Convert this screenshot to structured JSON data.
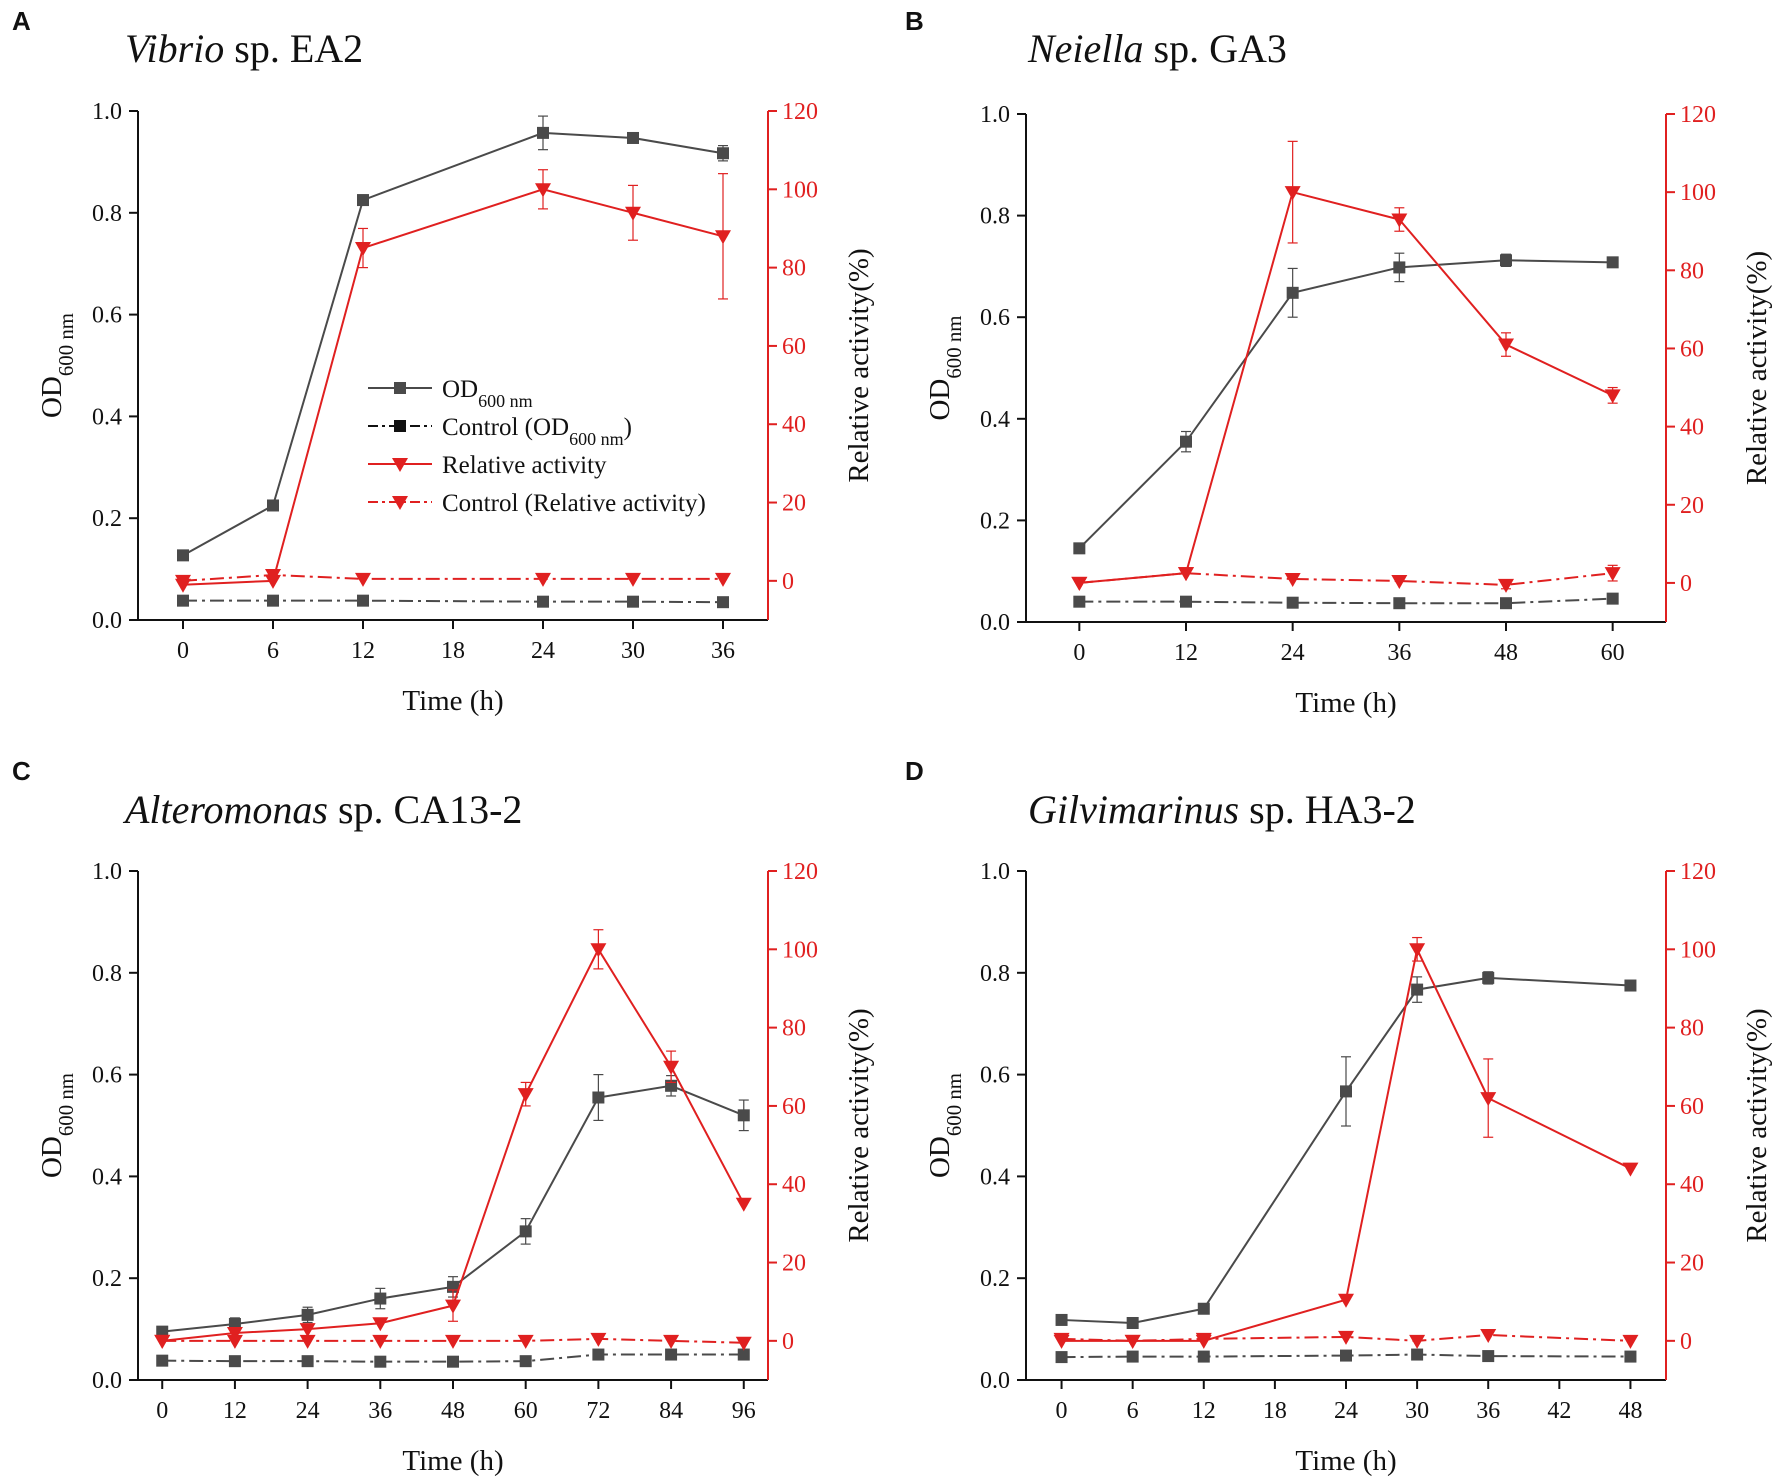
{
  "colors": {
    "od": "#4a4a4a",
    "activity": "#e02020",
    "axis_left": "#111111",
    "axis_right": "#e02020"
  },
  "legend": {
    "od": "OD600 nm",
    "control_od": "Control (OD600 nm)",
    "activity": "Relative activity",
    "control_activity": "Control (Relative activity)"
  },
  "chart_data": [
    {
      "panel": "A",
      "type": "line",
      "title": "Vibrio sp. EA2",
      "title_italic": "Vibrio",
      "title_rest": " sp. EA2",
      "xlabel": "Time (h)",
      "ylabel_left": "OD600 nm",
      "ylabel_right": "Relative activity(%)",
      "xlim": [
        -3,
        39
      ],
      "xticks": [
        0,
        6,
        12,
        18,
        24,
        30,
        36
      ],
      "ylim_left": [
        0,
        1.0
      ],
      "yticks_left": [
        "0.0",
        "0.2",
        "0.4",
        "0.6",
        "0.8",
        "1.0"
      ],
      "ylim_right": [
        -10,
        120
      ],
      "yticks_right": [
        0,
        20,
        40,
        60,
        80,
        100,
        120
      ],
      "has_legend": true,
      "series": [
        {
          "name": "OD600 nm",
          "axis": "left",
          "style": "solid",
          "marker": "square",
          "x": [
            0,
            6,
            12,
            24,
            30,
            36
          ],
          "values": [
            0.127,
            0.225,
            0.825,
            0.957,
            0.947,
            0.917
          ],
          "err": [
            0,
            0,
            0.01,
            0.033,
            0,
            0.015
          ]
        },
        {
          "name": "Control (OD600 nm)",
          "axis": "left",
          "style": "dashdot",
          "marker": "square",
          "x": [
            0,
            6,
            12,
            24,
            30,
            36
          ],
          "values": [
            0.038,
            0.038,
            0.038,
            0.036,
            0.036,
            0.035
          ],
          "err": []
        },
        {
          "name": "Relative activity",
          "axis": "right",
          "style": "solid",
          "marker": "triangle-down",
          "x": [
            0,
            6,
            12,
            24,
            30,
            36
          ],
          "values": [
            -1,
            0,
            85,
            100,
            94,
            88
          ],
          "err": [
            0,
            0,
            5,
            5,
            7,
            16
          ]
        },
        {
          "name": "Control (Relative activity)",
          "axis": "right",
          "style": "dashdot",
          "marker": "triangle-down",
          "x": [
            0,
            6,
            12,
            24,
            30,
            36
          ],
          "values": [
            0,
            1.5,
            0.5,
            0.5,
            0.5,
            0.5
          ],
          "err": []
        }
      ]
    },
    {
      "panel": "B",
      "type": "line",
      "title": "Neiella sp. GA3",
      "title_italic": "Neiella",
      "title_rest": " sp. GA3",
      "xlabel": "Time (h)",
      "ylabel_left": "OD600 nm",
      "ylabel_right": "Relative activity(%)",
      "xlim": [
        -6,
        66
      ],
      "xticks": [
        0,
        12,
        24,
        36,
        48,
        60
      ],
      "ylim_left": [
        0,
        1.0
      ],
      "yticks_left": [
        "0.0",
        "0.2",
        "0.4",
        "0.6",
        "0.8",
        "1.0"
      ],
      "ylim_right": [
        -10,
        120
      ],
      "yticks_right": [
        0,
        20,
        40,
        60,
        80,
        100,
        120
      ],
      "has_legend": false,
      "series": [
        {
          "name": "OD600 nm",
          "axis": "left",
          "style": "solid",
          "marker": "square",
          "x": [
            0,
            12,
            24,
            36,
            48,
            60
          ],
          "values": [
            0.145,
            0.355,
            0.648,
            0.698,
            0.712,
            0.708
          ],
          "err": [
            0.01,
            0.02,
            0.048,
            0.028,
            0.012,
            0.01
          ]
        },
        {
          "name": "Control (OD600 nm)",
          "axis": "left",
          "style": "dashdot",
          "marker": "square",
          "x": [
            0,
            12,
            24,
            36,
            48,
            60
          ],
          "values": [
            0.04,
            0.04,
            0.038,
            0.037,
            0.037,
            0.046
          ],
          "err": []
        },
        {
          "name": "Relative activity",
          "axis": "right",
          "style": "solid",
          "marker": "triangle-down",
          "x": [
            0,
            12,
            24,
            36,
            48,
            60
          ],
          "values": [
            0,
            2.5,
            100,
            93,
            61,
            48
          ],
          "err": [
            0,
            0,
            13,
            3,
            3,
            2
          ]
        },
        {
          "name": "Control (Relative activity)",
          "axis": "right",
          "style": "dashdot",
          "marker": "triangle-down",
          "x": [
            0,
            12,
            24,
            36,
            48,
            60
          ],
          "values": [
            0,
            2.5,
            1,
            0.5,
            -0.5,
            2.5
          ],
          "err": [
            0,
            0,
            0,
            0,
            1,
            2
          ]
        }
      ]
    },
    {
      "panel": "C",
      "type": "line",
      "title": "Alteromonas sp. CA13-2",
      "title_italic": "Alteromonas",
      "title_rest": " sp. CA13-2",
      "xlabel": "Time (h)",
      "ylabel_left": "OD600 nm",
      "ylabel_right": "Relative activity(%)",
      "xlim": [
        -4,
        100
      ],
      "xticks": [
        0,
        12,
        24,
        36,
        48,
        60,
        72,
        84,
        96
      ],
      "ylim_left": [
        0,
        1.0
      ],
      "yticks_left": [
        "0.0",
        "0.2",
        "0.4",
        "0.6",
        "0.8",
        "1.0"
      ],
      "ylim_right": [
        -10,
        120
      ],
      "yticks_right": [
        0,
        20,
        40,
        60,
        80,
        100,
        120
      ],
      "has_legend": false,
      "series": [
        {
          "name": "OD600 nm",
          "axis": "left",
          "style": "solid",
          "marker": "square",
          "x": [
            0,
            12,
            24,
            36,
            48,
            60,
            72,
            84,
            96
          ],
          "values": [
            0.095,
            0.11,
            0.128,
            0.16,
            0.183,
            0.292,
            0.555,
            0.578,
            0.52
          ],
          "err": [
            0.01,
            0.012,
            0.015,
            0.02,
            0.02,
            0.025,
            0.045,
            0.02,
            0.03
          ]
        },
        {
          "name": "Control (OD600 nm)",
          "axis": "left",
          "style": "dashdot",
          "marker": "square",
          "x": [
            0,
            12,
            24,
            36,
            48,
            60,
            72,
            84,
            96
          ],
          "values": [
            0.038,
            0.037,
            0.037,
            0.036,
            0.036,
            0.037,
            0.05,
            0.05,
            0.05
          ],
          "err": []
        },
        {
          "name": "Relative activity",
          "axis": "right",
          "style": "solid",
          "marker": "triangle-down",
          "x": [
            0,
            12,
            24,
            36,
            48,
            60,
            72,
            84,
            96
          ],
          "values": [
            0,
            2,
            3,
            4.5,
            9,
            63,
            100,
            70,
            35
          ],
          "err": [
            0,
            0,
            0,
            0,
            4,
            3,
            5,
            4,
            0
          ]
        },
        {
          "name": "Control (Relative activity)",
          "axis": "right",
          "style": "dashdot",
          "marker": "triangle-down",
          "x": [
            0,
            12,
            24,
            36,
            48,
            60,
            72,
            84,
            96
          ],
          "values": [
            0,
            0,
            0,
            0,
            0,
            0,
            0.5,
            0,
            -0.5
          ],
          "err": []
        }
      ]
    },
    {
      "panel": "D",
      "type": "line",
      "title": "Gilvimarinus sp. HA3-2",
      "title_italic": "Gilvimarinus",
      "title_rest": " sp. HA3-2",
      "xlabel": "Time (h)",
      "ylabel_left": "OD600 nm",
      "ylabel_right": "Relative activity(%)",
      "xlim": [
        -3,
        51
      ],
      "xticks": [
        0,
        6,
        12,
        18,
        24,
        30,
        36,
        42,
        48
      ],
      "ylim_left": [
        0,
        1.0
      ],
      "yticks_left": [
        "0.0",
        "0.2",
        "0.4",
        "0.6",
        "0.8",
        "1.0"
      ],
      "ylim_right": [
        -10,
        120
      ],
      "yticks_right": [
        0,
        20,
        40,
        60,
        80,
        100,
        120
      ],
      "has_legend": false,
      "series": [
        {
          "name": "OD600 nm",
          "axis": "left",
          "style": "solid",
          "marker": "square",
          "x": [
            0,
            6,
            12,
            24,
            30,
            36,
            48
          ],
          "values": [
            0.118,
            0.112,
            0.14,
            0.567,
            0.767,
            0.79,
            0.775
          ],
          "err": [
            0,
            0,
            0.01,
            0.068,
            0.025,
            0.012,
            0
          ]
        },
        {
          "name": "Control (OD600 nm)",
          "axis": "left",
          "style": "dashdot",
          "marker": "square",
          "x": [
            0,
            6,
            12,
            24,
            30,
            36,
            48
          ],
          "values": [
            0.045,
            0.046,
            0.046,
            0.048,
            0.05,
            0.047,
            0.046
          ],
          "err": []
        },
        {
          "name": "Relative activity",
          "axis": "right",
          "style": "solid",
          "marker": "triangle-down",
          "x": [
            0,
            6,
            12,
            24,
            30,
            36,
            48
          ],
          "values": [
            0,
            0,
            0,
            10.5,
            100,
            62,
            44
          ],
          "err": [
            0,
            0,
            0,
            0,
            3,
            10,
            0
          ]
        },
        {
          "name": "Control (Relative activity)",
          "axis": "right",
          "style": "dashdot",
          "marker": "triangle-down",
          "x": [
            0,
            6,
            12,
            24,
            30,
            36,
            48
          ],
          "values": [
            0.5,
            0,
            0.5,
            1,
            0,
            1.5,
            0
          ],
          "err": []
        }
      ]
    }
  ]
}
